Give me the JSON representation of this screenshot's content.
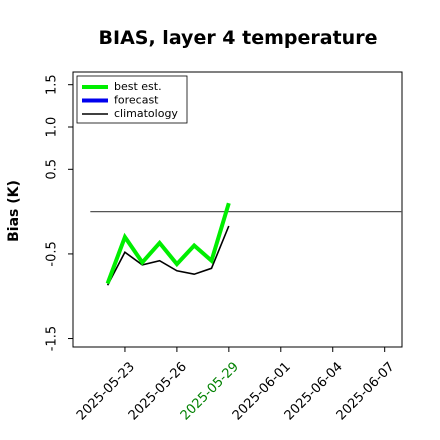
{
  "chart_data": {
    "type": "line",
    "title": "BIAS, layer 4 temperature",
    "ylabel": "Bias (K)",
    "xlabel": "",
    "ylim": [
      -1.6,
      1.65
    ],
    "xlim": [
      "2025-05-20",
      "2025-06-08"
    ],
    "y_ticks": [
      "-1.5",
      "-0.5",
      "0.5",
      "1.0",
      "1.5"
    ],
    "y_tick_values": [
      -1.5,
      -0.5,
      0.5,
      1.0,
      1.5
    ],
    "x_ticks": [
      {
        "label": "2025-05-23",
        "date": "2025-05-23",
        "color": "#000000"
      },
      {
        "label": "2025-05-26",
        "date": "2025-05-26",
        "color": "#000000"
      },
      {
        "label": "2025-05-29",
        "date": "2025-05-29",
        "color": "#008000"
      },
      {
        "label": "2025-06-01",
        "date": "2025-06-01",
        "color": "#000000"
      },
      {
        "label": "2025-06-04",
        "date": "2025-06-04",
        "color": "#000000"
      },
      {
        "label": "2025-06-07",
        "date": "2025-06-07",
        "color": "#000000"
      }
    ],
    "reference_line": {
      "y": 0,
      "from": "2025-05-21",
      "to": "2025-06-08",
      "color": "#555555"
    },
    "legend_position": "top-left",
    "grid": false,
    "series": [
      {
        "name": "best est.",
        "color": "#00ee00",
        "x": [
          "2025-05-22",
          "2025-05-23",
          "2025-05-24",
          "2025-05-25",
          "2025-05-26",
          "2025-05-27",
          "2025-05-28",
          "2025-05-29"
        ],
        "y": [
          -0.85,
          -0.3,
          -0.6,
          -0.37,
          -0.62,
          -0.4,
          -0.58,
          0.1
        ]
      },
      {
        "name": "forecast",
        "color": "#0000ee",
        "x": [],
        "y": []
      },
      {
        "name": "climatology",
        "color": "#000000",
        "x": [
          "2025-05-22",
          "2025-05-23",
          "2025-05-24",
          "2025-05-25",
          "2025-05-26",
          "2025-05-27",
          "2025-05-28",
          "2025-05-29"
        ],
        "y": [
          -0.87,
          -0.48,
          -0.63,
          -0.58,
          -0.7,
          -0.74,
          -0.67,
          -0.17
        ]
      }
    ]
  }
}
